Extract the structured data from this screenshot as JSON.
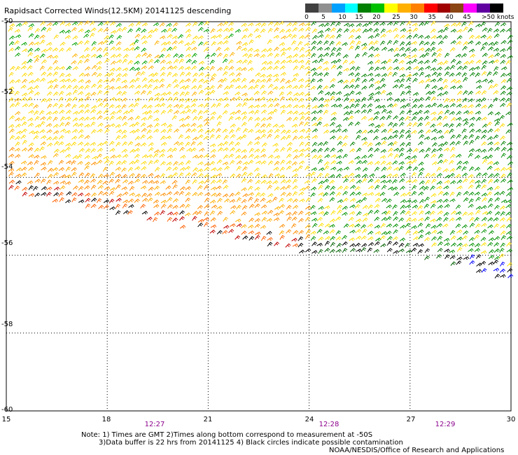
{
  "title": "Rapidsact Corrected Winds(12.5KM) 20141125 descending",
  "colorbar": {
    "colors": [
      "#404040",
      "#909090",
      "#00a0ff",
      "#00ffff",
      "#007f00",
      "#00c000",
      "#ffff00",
      "#ffb000",
      "#ff8000",
      "#ff0000",
      "#a00000",
      "#8b4513",
      "#ff00ff",
      "#6000a0",
      "#000000"
    ],
    "labels": [
      "0",
      "5",
      "10",
      "15",
      "20",
      "25",
      "30",
      "35",
      "40",
      "45",
      ">50 knots"
    ]
  },
  "axes": {
    "lat_labels": [
      "-50",
      "-52",
      "-54",
      "-56",
      "-58",
      "-60"
    ],
    "lon_labels": [
      "15",
      "18",
      "21",
      "24",
      "27",
      "30"
    ]
  },
  "times": [
    "12:27",
    "12:28",
    "12:29"
  ],
  "notes": {
    "line1": "Note: 1) Times are GMT 2)Times along bottom correspond to measurement at -50S",
    "line2": "3)Data buffer is 22 hrs from 20141125 4) Black circles indicate possible contamination",
    "line3": "NOAA/NESDIS/Office of Research and Applications"
  },
  "chart_data": {
    "type": "wind-barb map",
    "x_range": [
      15,
      30
    ],
    "y_range": [
      -60,
      -50
    ],
    "swath_lower_edge_lat": [
      [
        15,
        -54.4
      ],
      [
        24,
        -56.0
      ],
      [
        27,
        -56.0
      ],
      [
        30,
        -56.7
      ]
    ],
    "wind_speed_regions_knots": [
      {
        "region": "west",
        "speed_range": [
          20,
          30
        ]
      },
      {
        "region": "southwest edge",
        "speed_range": [
          30,
          50
        ]
      },
      {
        "region": "east",
        "speed_range": [
          15,
          25
        ]
      },
      {
        "region": "southeast corner",
        "speed_range": [
          10,
          15
        ]
      }
    ]
  }
}
